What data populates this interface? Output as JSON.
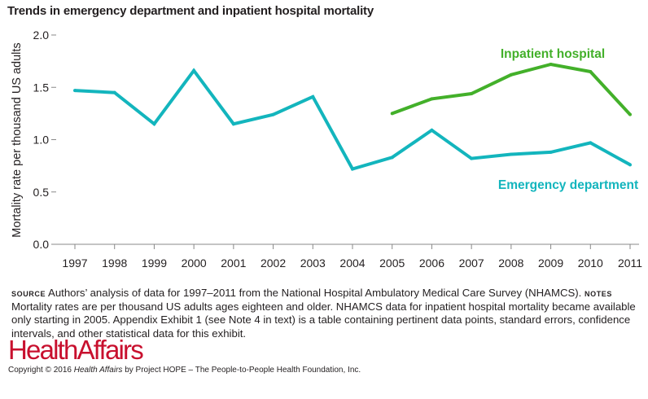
{
  "colors": {
    "inpatient": "#43b02a",
    "emergency": "#13b5bd",
    "brand": "#c8102e",
    "axis": "#888888",
    "text": "#231f20"
  },
  "chart_data": {
    "type": "line",
    "title": "Trends in emergency department and inpatient hospital mortality",
    "xlabel": "",
    "ylabel": "Mortality rate per thousand US adults",
    "x": [
      1997,
      1998,
      1999,
      2000,
      2001,
      2002,
      2003,
      2004,
      2005,
      2006,
      2007,
      2008,
      2009,
      2010,
      2011
    ],
    "x_tick_labels": [
      "1997",
      "1998",
      "1999",
      "2000",
      "2001",
      "2002",
      "2003",
      "2004",
      "2005",
      "2006",
      "2007",
      "2008",
      "2009",
      "2010",
      "2011"
    ],
    "ylim": [
      0,
      2.0
    ],
    "y_ticks": [
      0.0,
      0.5,
      1.0,
      1.5,
      2.0
    ],
    "y_tick_labels": [
      "0.0",
      "0.5",
      "1.0",
      "1.5",
      "2.0"
    ],
    "grid": false,
    "series": [
      {
        "name": "Inpatient hospital",
        "color_key": "inpatient",
        "x": [
          2005,
          2006,
          2007,
          2008,
          2009,
          2010,
          2011
        ],
        "values": [
          1.25,
          1.39,
          1.44,
          1.62,
          1.72,
          1.65,
          1.24
        ]
      },
      {
        "name": "Emergency department",
        "color_key": "emergency",
        "x": [
          1997,
          1998,
          1999,
          2000,
          2001,
          2002,
          2003,
          2004,
          2005,
          2006,
          2007,
          2008,
          2009,
          2010,
          2011
        ],
        "values": [
          1.47,
          1.45,
          1.15,
          1.66,
          1.15,
          1.24,
          1.41,
          0.72,
          0.83,
          1.09,
          0.82,
          0.86,
          0.88,
          0.97,
          0.76
        ]
      }
    ]
  },
  "notes": {
    "source_label": "Source",
    "source_text": "Authors’ analysis of data for 1997–2011 from the National Hospital Ambulatory Medical Care Survey (NHAMCS).",
    "notes_label": "Notes",
    "notes_text": "Mortality rates are per thousand US adults ages eighteen and older. NHAMCS data for inpatient hospital mortality became available only starting in 2005. Appendix Exhibit 1 (see Note 4 in text) is a table containing pertinent data points, standard errors, confidence intervals, and other statistical data for this exhibit."
  },
  "footer": {
    "brand": "HealthAffairs",
    "copyright_prefix": "Copyright © 2016",
    "copyright_journal": "Health Affairs",
    "copyright_suffix": "by Project HOPE – The People-to-People Health Foundation, Inc."
  }
}
